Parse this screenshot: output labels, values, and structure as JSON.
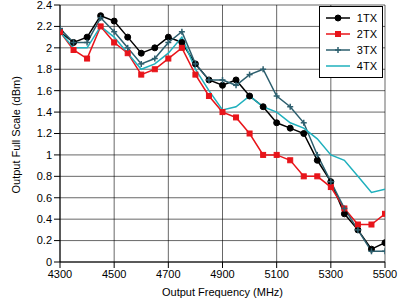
{
  "chart_data": {
    "type": "line",
    "x_label": "Output Frequency (MHz)",
    "y_label": "Output Full Scale (dBm)",
    "x": [
      4300,
      4350,
      4400,
      4450,
      4500,
      4550,
      4600,
      4650,
      4700,
      4750,
      4800,
      4850,
      4900,
      4950,
      5000,
      5050,
      5100,
      5150,
      5200,
      5250,
      5300,
      5350,
      5400,
      5450,
      5500
    ],
    "series": [
      {
        "name": "1TX",
        "color": "#000000",
        "marker": "circle",
        "values": [
          2.15,
          2.05,
          2.1,
          2.3,
          2.25,
          2.1,
          1.95,
          2.0,
          2.1,
          2.05,
          1.85,
          1.7,
          1.65,
          1.7,
          1.55,
          1.45,
          1.3,
          1.25,
          1.2,
          0.95,
          0.75,
          0.45,
          0.3,
          0.12,
          0.18
        ]
      },
      {
        "name": "2TX",
        "color": "#e8141a",
        "marker": "square",
        "values": [
          2.15,
          1.98,
          1.9,
          2.2,
          2.05,
          1.95,
          1.75,
          1.8,
          1.9,
          2.0,
          1.75,
          1.55,
          1.4,
          1.35,
          1.2,
          1.0,
          1.0,
          0.95,
          0.8,
          0.8,
          0.7,
          0.5,
          0.35,
          0.35,
          0.45
        ]
      },
      {
        "name": "3TX",
        "color": "#2d5f6e",
        "marker": "plus",
        "values": [
          2.18,
          2.05,
          2.05,
          2.28,
          2.15,
          2.0,
          1.85,
          1.9,
          2.05,
          2.15,
          1.85,
          1.7,
          1.7,
          1.65,
          1.75,
          1.8,
          1.55,
          1.45,
          1.3,
          1.0,
          0.75,
          0.5,
          0.3,
          0.1,
          0.1
        ]
      },
      {
        "name": "4TX",
        "color": "#1fb0bd",
        "marker": "none",
        "values": [
          2.15,
          2.0,
          2.0,
          2.2,
          2.1,
          1.95,
          1.8,
          1.85,
          1.95,
          2.1,
          1.8,
          1.6,
          1.42,
          1.45,
          1.55,
          1.45,
          1.4,
          1.3,
          1.25,
          1.15,
          1.0,
          0.95,
          0.8,
          0.65,
          0.68
        ]
      }
    ],
    "xlim": [
      4300,
      5500
    ],
    "xticks": [
      4300,
      4500,
      4700,
      4900,
      5100,
      5300,
      5500
    ],
    "ylim": [
      0,
      2.4
    ],
    "yticks": [
      0,
      0.2,
      0.4,
      0.6,
      0.8,
      1,
      1.2,
      1.4,
      1.6,
      1.8,
      2,
      2.2,
      2.4
    ],
    "grid": true,
    "legend": "upper right"
  }
}
